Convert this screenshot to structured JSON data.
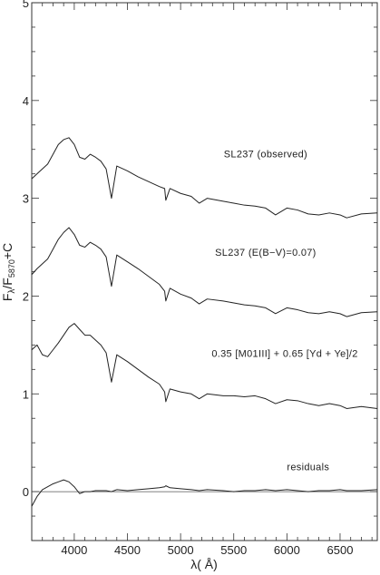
{
  "chart_data": {
    "type": "line",
    "title": "",
    "xlabel": "λ( Å)",
    "ylabel": "F_λ/F_5870+C",
    "ylabel_main": "F",
    "ylabel_sub1": "λ",
    "ylabel_mid": "/F",
    "ylabel_sub2": "5870",
    "ylabel_tail": "+C",
    "xlim": [
      3600,
      6850
    ],
    "ylim": [
      -0.5,
      5
    ],
    "grid": false,
    "legend": "none",
    "xticks": [
      4000,
      4500,
      5000,
      5500,
      6000,
      6500
    ],
    "xtick_labels": [
      "4000",
      "4500",
      "5000",
      "5500",
      "6000",
      "6500"
    ],
    "yticks": [
      0,
      1,
      2,
      3,
      4,
      5
    ],
    "ytick_labels": [
      "0",
      "1",
      "2",
      "3",
      "4",
      "5"
    ],
    "zero_line": 0,
    "annotations": [
      {
        "text": "SL237 (observed)",
        "x": 5800,
        "y": 3.42
      },
      {
        "text": "SL237 (E(B−V)=0.07)",
        "x": 5800,
        "y": 2.41
      },
      {
        "text": "0.35 [M01III] + 0.65 [Yd + Ye]/2",
        "x": 5980,
        "y": 1.38
      },
      {
        "text": "residuals",
        "x": 6200,
        "y": 0.22
      }
    ],
    "series": [
      {
        "x": [
          3600,
          3650,
          3700,
          3750,
          3800,
          3850,
          3900,
          3950,
          4000,
          4050,
          4100,
          4150,
          4200,
          4250,
          4300,
          4350,
          4400,
          4500,
          4600,
          4700,
          4800,
          4850,
          4861,
          4900,
          5000,
          5100,
          5175,
          5250,
          5400,
          5500,
          5600,
          5700,
          5800,
          5893,
          6000,
          6100,
          6200,
          6300,
          6400,
          6500,
          6563,
          6700,
          6850
        ],
        "y": [
          3.2,
          3.25,
          3.3,
          3.35,
          3.45,
          3.55,
          3.6,
          3.62,
          3.55,
          3.42,
          3.4,
          3.45,
          3.42,
          3.38,
          3.3,
          3.0,
          3.33,
          3.28,
          3.22,
          3.17,
          3.12,
          3.1,
          2.98,
          3.1,
          3.05,
          3.02,
          2.95,
          3.0,
          2.97,
          2.95,
          2.93,
          2.92,
          2.9,
          2.83,
          2.9,
          2.88,
          2.84,
          2.83,
          2.85,
          2.83,
          2.8,
          2.84,
          2.85
        ]
      },
      {
        "x": [
          3600,
          3650,
          3700,
          3750,
          3800,
          3850,
          3900,
          3950,
          4000,
          4050,
          4100,
          4150,
          4200,
          4250,
          4300,
          4350,
          4400,
          4500,
          4600,
          4700,
          4800,
          4850,
          4861,
          4900,
          5000,
          5100,
          5175,
          5250,
          5400,
          5500,
          5600,
          5700,
          5800,
          5893,
          6000,
          6100,
          6200,
          6300,
          6400,
          6500,
          6563,
          6700,
          6850
        ],
        "y": [
          2.22,
          2.28,
          2.33,
          2.38,
          2.48,
          2.58,
          2.65,
          2.7,
          2.63,
          2.52,
          2.5,
          2.55,
          2.52,
          2.48,
          2.4,
          2.1,
          2.42,
          2.35,
          2.28,
          2.2,
          2.12,
          2.05,
          1.95,
          2.08,
          2.02,
          1.98,
          1.92,
          1.97,
          1.95,
          1.93,
          1.91,
          1.9,
          1.88,
          1.82,
          1.88,
          1.86,
          1.83,
          1.82,
          1.84,
          1.82,
          1.79,
          1.83,
          1.84
        ]
      },
      {
        "x": [
          3600,
          3650,
          3700,
          3750,
          3800,
          3850,
          3900,
          3950,
          4000,
          4050,
          4100,
          4150,
          4200,
          4250,
          4300,
          4350,
          4400,
          4500,
          4600,
          4700,
          4800,
          4850,
          4861,
          4900,
          5000,
          5100,
          5175,
          5250,
          5400,
          5500,
          5600,
          5700,
          5800,
          5893,
          6000,
          6100,
          6200,
          6300,
          6400,
          6500,
          6563,
          6700,
          6850
        ],
        "y": [
          1.45,
          1.5,
          1.4,
          1.38,
          1.45,
          1.52,
          1.6,
          1.68,
          1.72,
          1.66,
          1.6,
          1.6,
          1.55,
          1.5,
          1.42,
          1.12,
          1.4,
          1.33,
          1.25,
          1.17,
          1.1,
          1.02,
          0.92,
          1.05,
          1.02,
          1.0,
          0.95,
          1.0,
          0.98,
          0.98,
          0.97,
          0.98,
          0.95,
          0.9,
          0.94,
          0.93,
          0.9,
          0.88,
          0.9,
          0.88,
          0.85,
          0.87,
          0.85
        ]
      },
      {
        "x": [
          3600,
          3650,
          3700,
          3750,
          3800,
          3850,
          3900,
          3950,
          4000,
          4050,
          4100,
          4150,
          4200,
          4250,
          4300,
          4350,
          4400,
          4500,
          4600,
          4700,
          4800,
          4850,
          4861,
          4900,
          5000,
          5100,
          5175,
          5250,
          5400,
          5500,
          5600,
          5700,
          5800,
          5893,
          6000,
          6100,
          6200,
          6300,
          6400,
          6500,
          6563,
          6700,
          6850
        ],
        "y": [
          -0.15,
          -0.05,
          0.02,
          0.05,
          0.08,
          0.1,
          0.12,
          0.1,
          0.05,
          -0.02,
          0.0,
          0.0,
          0.01,
          0.01,
          0.01,
          0.0,
          0.02,
          0.01,
          0.02,
          0.03,
          0.04,
          0.05,
          0.06,
          0.04,
          0.03,
          0.02,
          0.01,
          0.02,
          0.01,
          0.0,
          0.01,
          0.01,
          0.02,
          0.01,
          0.02,
          0.01,
          0.0,
          0.01,
          0.01,
          0.02,
          0.01,
          0.01,
          0.02
        ]
      }
    ]
  }
}
